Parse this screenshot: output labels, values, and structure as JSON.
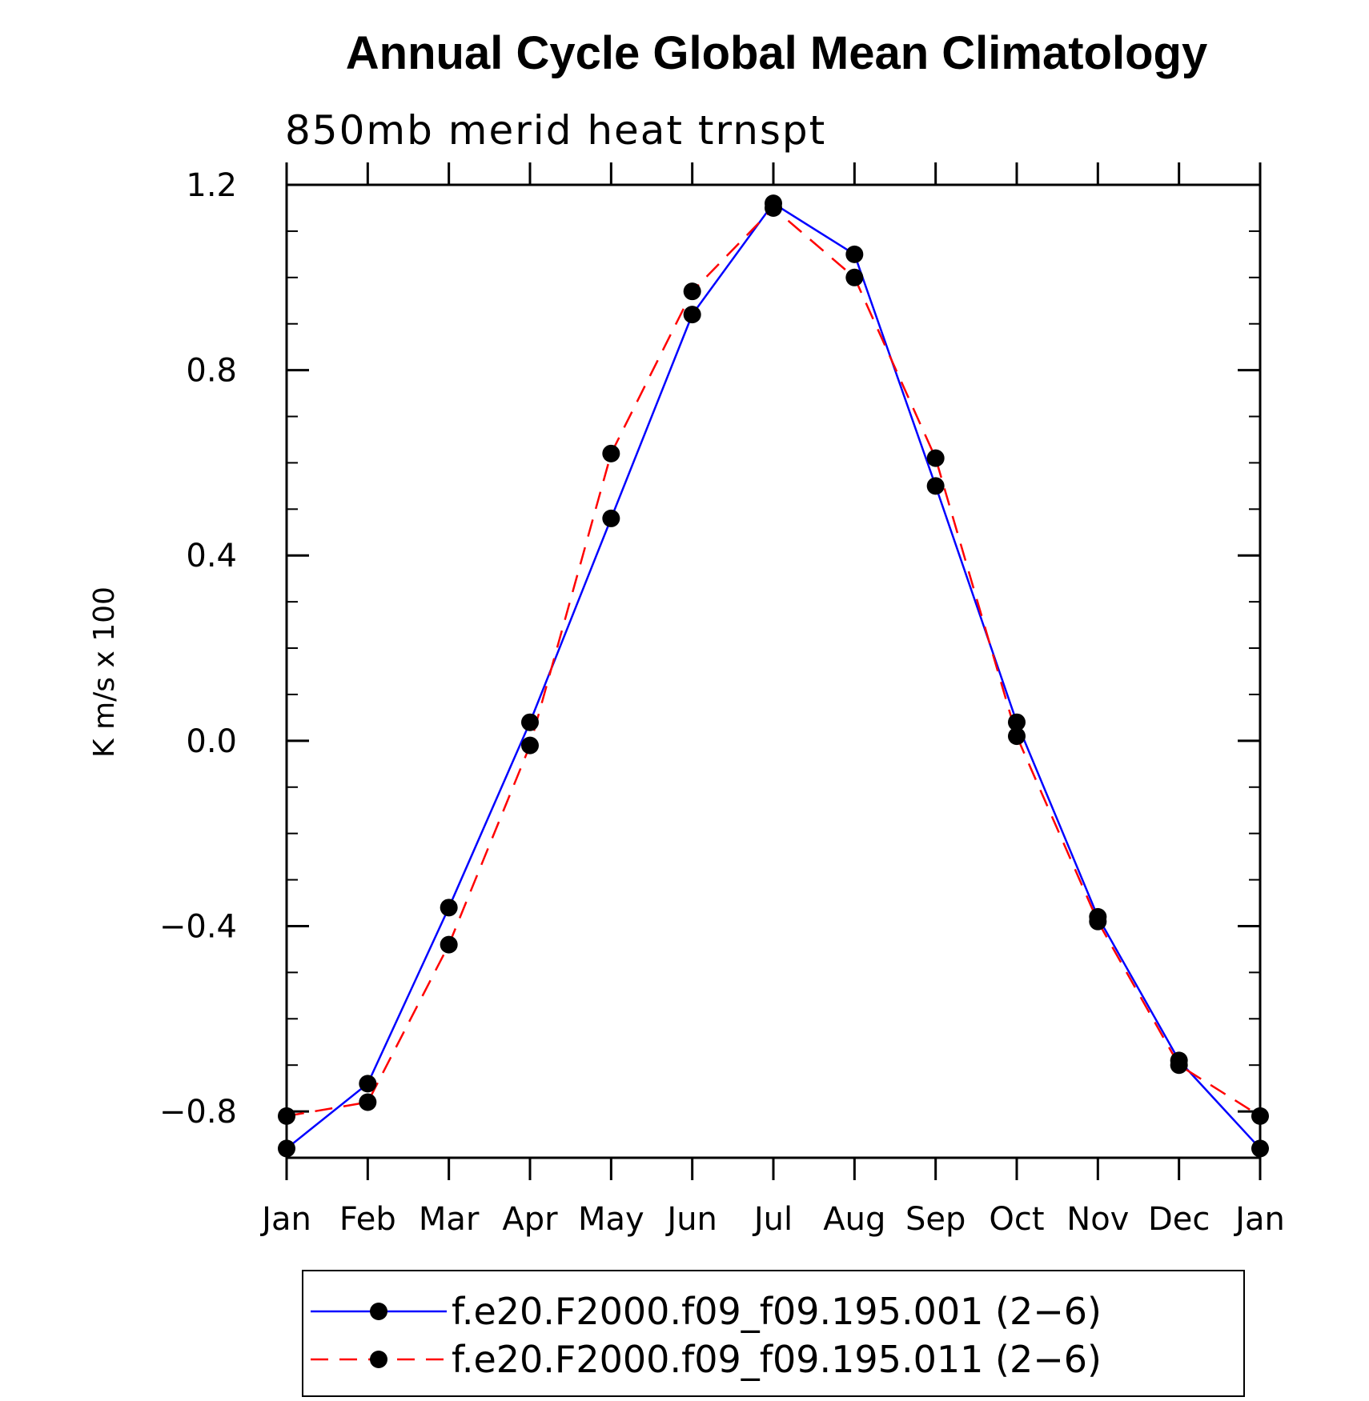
{
  "chart_data": {
    "type": "line",
    "title": "Annual Cycle Global Mean Climatology",
    "subtitle": "850mb merid heat trnspt",
    "ylabel": "K m/s x 100",
    "xlabel": "",
    "categories": [
      "Jan",
      "Feb",
      "Mar",
      "Apr",
      "May",
      "Jun",
      "Jul",
      "Aug",
      "Sep",
      "Oct",
      "Nov",
      "Dec",
      "Jan"
    ],
    "ylim": [
      -0.9,
      1.2
    ],
    "yticks": [
      -0.8,
      -0.4,
      0.0,
      0.4,
      0.8,
      1.2
    ],
    "ytick_labels": [
      "−0.8",
      "−0.4",
      "0.0",
      "0.4",
      "0.8",
      "1.2"
    ],
    "grid": false,
    "legend_position": "bottom",
    "series": [
      {
        "name": "f.e20.F2000.f09_f09.195.001 (2−6)",
        "color": "#0000ff",
        "line_style": "solid",
        "values": [
          -0.88,
          -0.74,
          -0.36,
          0.04,
          0.48,
          0.92,
          1.16,
          1.05,
          0.55,
          0.04,
          -0.38,
          -0.69,
          -0.88
        ]
      },
      {
        "name": "f.e20.F2000.f09_f09.195.011 (2−6)",
        "color": "#ff0000",
        "line_style": "dashed",
        "values": [
          -0.81,
          -0.78,
          -0.44,
          -0.01,
          0.62,
          0.97,
          1.15,
          1.0,
          0.61,
          0.01,
          -0.39,
          -0.7,
          -0.81
        ]
      }
    ]
  }
}
